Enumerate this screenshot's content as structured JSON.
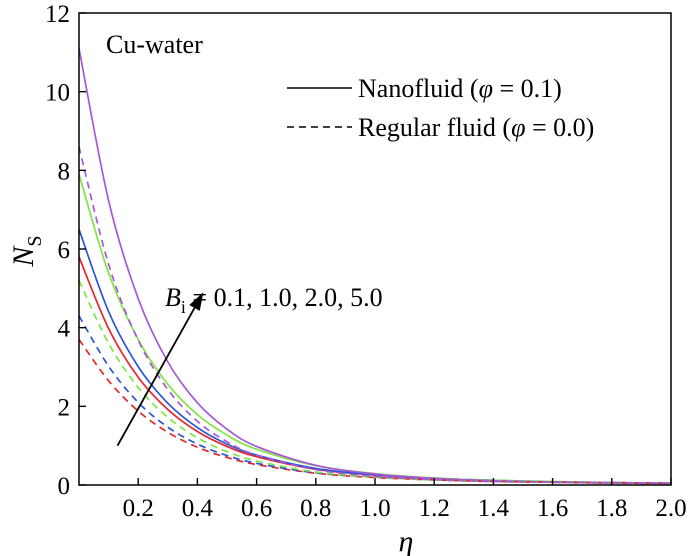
{
  "chart_data": {
    "type": "line",
    "panel_label": "Cu-water",
    "xlabel": "η",
    "ylabel": {
      "main": "N",
      "sub": "S"
    },
    "xlim": [
      0.0,
      2.0
    ],
    "ylim": [
      0,
      12
    ],
    "x_ticks": [
      0.2,
      0.4,
      0.6,
      0.8,
      1.0,
      1.2,
      1.4,
      1.6,
      1.8,
      2.0
    ],
    "x_tick_labels": [
      "0.2",
      "0.4",
      "0.6",
      "0.8",
      "1.0",
      "1.2",
      "1.4",
      "1.6",
      "1.8",
      "2.0"
    ],
    "y_ticks": [
      0,
      2,
      4,
      6,
      8,
      10,
      12
    ],
    "y_tick_labels": [
      "0",
      "2",
      "4",
      "6",
      "8",
      "10",
      "12"
    ],
    "legend": {
      "position": "top-right",
      "entries": [
        {
          "label_prefix": "Nanofluid (",
          "symbol": "φ",
          "label_suffix": " = 0.1)",
          "style": "solid"
        },
        {
          "label_prefix": "Regular fluid (",
          "symbol": "φ",
          "label_suffix": " = 0.0)",
          "style": "dashed"
        }
      ]
    },
    "annotation": {
      "symbol": "B",
      "sub": "i",
      "text": " = 0.1, 1.0, 2.0, 5.0",
      "arrow_from": [
        0.13,
        1.0
      ],
      "arrow_to": [
        0.42,
        4.9
      ]
    },
    "colors": {
      "0.1": "#e8262b",
      "1.0": "#2a55d8",
      "2.0": "#7ee640",
      "5.0": "#a757d8"
    },
    "series": [
      {
        "Bi": "0.1",
        "style": "solid",
        "color": "#e8262b",
        "x": [
          0.0,
          0.1,
          0.2,
          0.3,
          0.4,
          0.5,
          0.6,
          0.8,
          1.0,
          1.2,
          1.4,
          1.6,
          1.8,
          2.0
        ],
        "y": [
          5.8,
          3.98,
          2.74,
          1.92,
          1.36,
          0.98,
          0.72,
          0.4,
          0.25,
          0.16,
          0.11,
          0.08,
          0.06,
          0.05
        ]
      },
      {
        "Bi": "1.0",
        "style": "solid",
        "color": "#2a55d8",
        "x": [
          0.0,
          0.1,
          0.2,
          0.3,
          0.4,
          0.5,
          0.6,
          0.8,
          1.0,
          1.2,
          1.4,
          1.6,
          1.8,
          2.0
        ],
        "y": [
          6.5,
          4.41,
          3.01,
          2.08,
          1.46,
          1.04,
          0.76,
          0.42,
          0.26,
          0.17,
          0.12,
          0.08,
          0.06,
          0.05
        ]
      },
      {
        "Bi": "2.0",
        "style": "solid",
        "color": "#7ee640",
        "x": [
          0.0,
          0.1,
          0.2,
          0.3,
          0.4,
          0.5,
          0.6,
          0.8,
          1.0,
          1.2,
          1.4,
          1.6,
          1.8,
          2.0
        ],
        "y": [
          7.9,
          5.39,
          3.7,
          2.56,
          1.79,
          1.27,
          0.91,
          0.49,
          0.29,
          0.18,
          0.12,
          0.09,
          0.06,
          0.05
        ]
      },
      {
        "Bi": "5.0",
        "style": "solid",
        "color": "#a757d8",
        "x": [
          0.0,
          0.1,
          0.2,
          0.3,
          0.4,
          0.5,
          0.6,
          0.8,
          1.0,
          1.2,
          1.4,
          1.6,
          1.8,
          2.0
        ],
        "y": [
          11.1,
          7.23,
          4.74,
          3.13,
          2.09,
          1.42,
          0.98,
          0.5,
          0.28,
          0.17,
          0.11,
          0.08,
          0.06,
          0.05
        ]
      },
      {
        "Bi": "0.1",
        "style": "dashed",
        "color": "#e8262b",
        "x": [
          0.0,
          0.1,
          0.2,
          0.3,
          0.4,
          0.5,
          0.6,
          0.8,
          1.0,
          1.2,
          1.4,
          1.6,
          1.8,
          2.0
        ],
        "y": [
          3.7,
          2.65,
          1.88,
          1.34,
          0.96,
          0.7,
          0.52,
          0.3,
          0.19,
          0.13,
          0.09,
          0.07,
          0.05,
          0.04
        ]
      },
      {
        "Bi": "1.0",
        "style": "dashed",
        "color": "#2a55d8",
        "x": [
          0.0,
          0.1,
          0.2,
          0.3,
          0.4,
          0.5,
          0.6,
          0.8,
          1.0,
          1.2,
          1.4,
          1.6,
          1.8,
          2.0
        ],
        "y": [
          4.3,
          3.02,
          2.1,
          1.47,
          1.04,
          0.75,
          0.55,
          0.31,
          0.2,
          0.13,
          0.09,
          0.07,
          0.05,
          0.04
        ]
      },
      {
        "Bi": "2.0",
        "style": "dashed",
        "color": "#7ee640",
        "x": [
          0.0,
          0.1,
          0.2,
          0.3,
          0.4,
          0.5,
          0.6,
          0.8,
          1.0,
          1.2,
          1.4,
          1.6,
          1.8,
          2.0
        ],
        "y": [
          5.2,
          3.6,
          2.48,
          1.72,
          1.2,
          0.85,
          0.61,
          0.33,
          0.2,
          0.13,
          0.09,
          0.07,
          0.05,
          0.04
        ]
      },
      {
        "Bi": "5.0",
        "style": "dashed",
        "color": "#a757d8",
        "x": [
          0.0,
          0.1,
          0.2,
          0.3,
          0.4,
          0.5,
          0.6,
          0.8,
          1.0,
          1.2,
          1.4,
          1.6,
          1.8,
          2.0
        ],
        "y": [
          8.6,
          5.61,
          3.68,
          2.43,
          1.62,
          1.1,
          0.76,
          0.39,
          0.22,
          0.14,
          0.09,
          0.07,
          0.05,
          0.04
        ]
      }
    ],
    "grid": false
  }
}
